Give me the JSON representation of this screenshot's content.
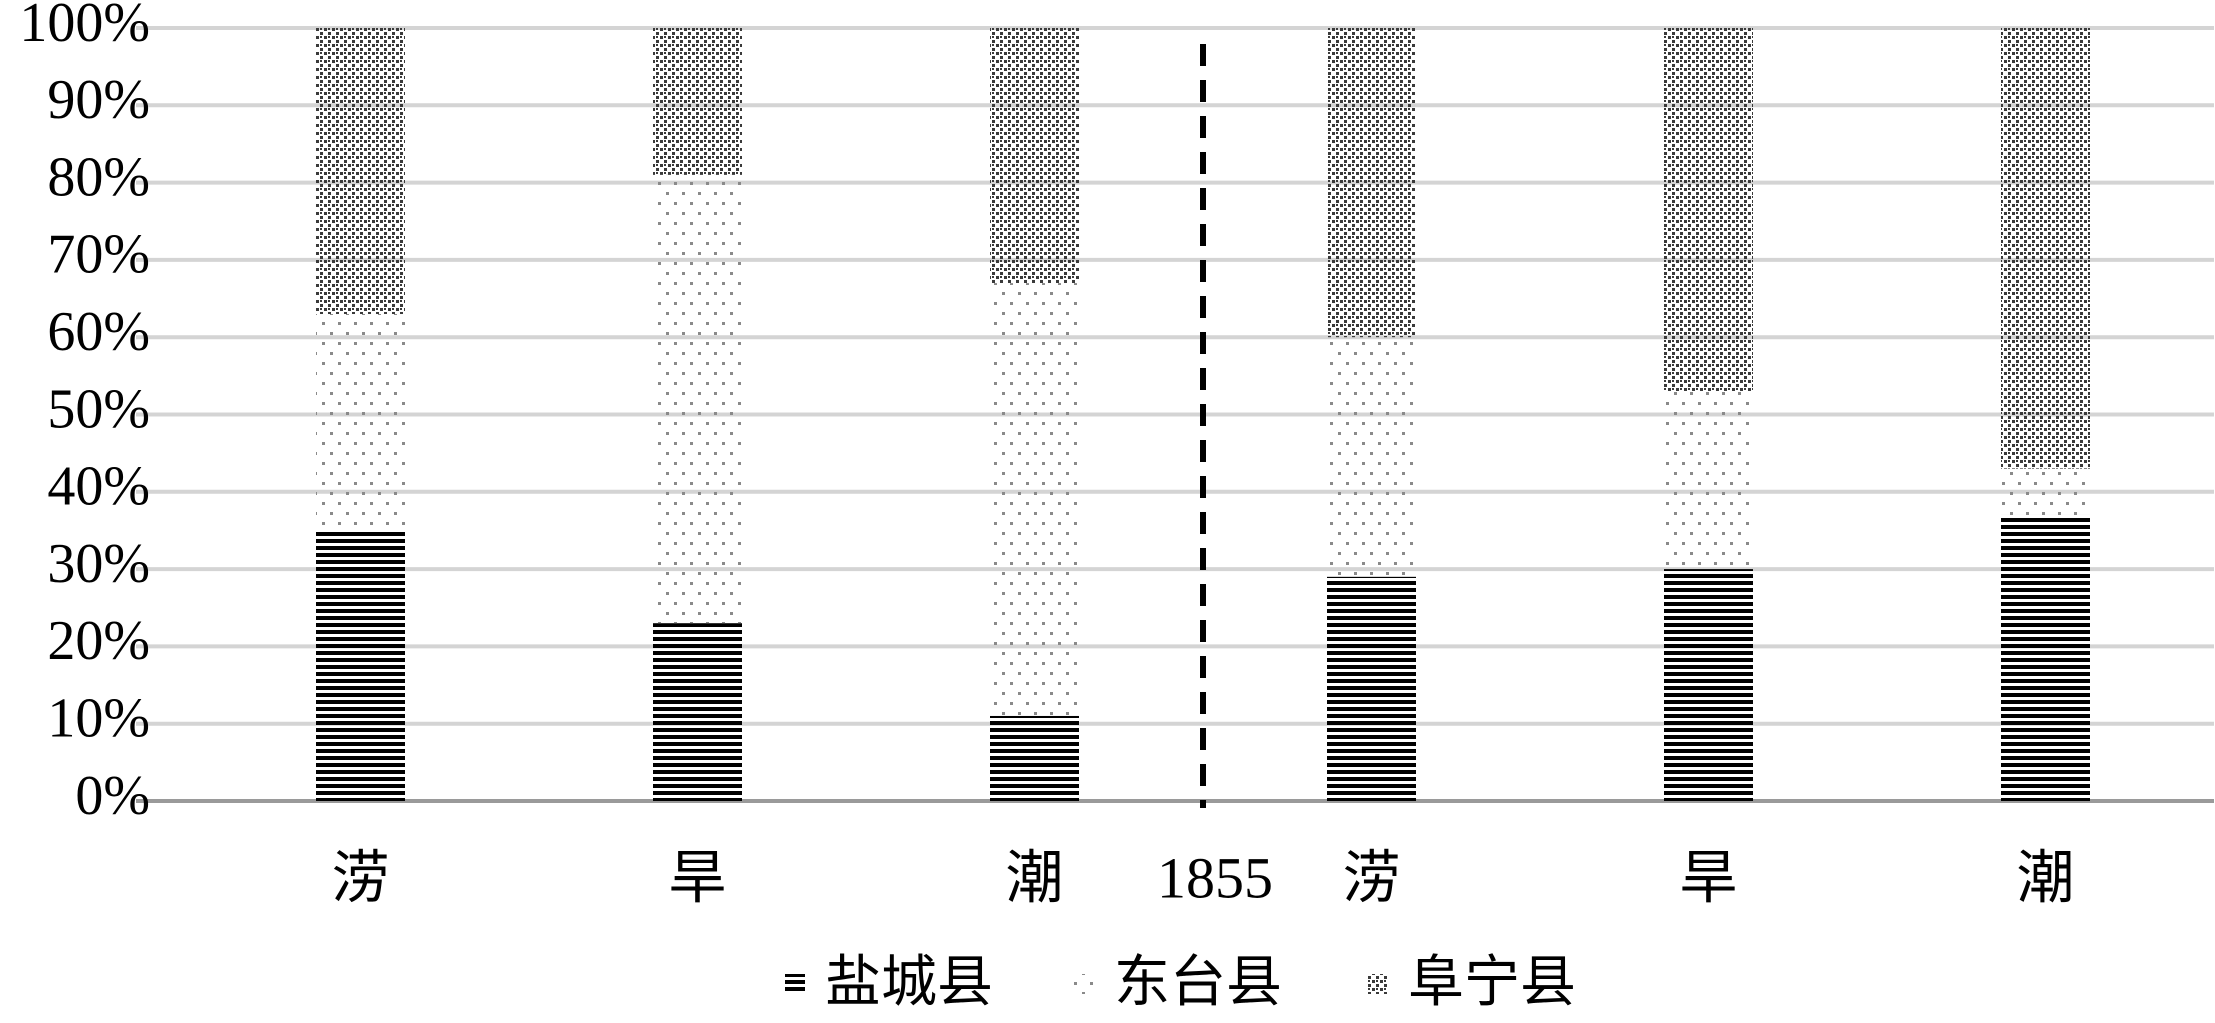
{
  "chart_data": {
    "type": "stacked_bar",
    "categories": [
      "涝",
      "旱",
      "潮",
      "涝",
      "旱",
      "潮"
    ],
    "annotation": "1855",
    "series": [
      {
        "name": "盐城县",
        "color": "#000000",
        "values": [
          35,
          23,
          11,
          29,
          30,
          37
        ]
      },
      {
        "name": "东台县",
        "color": "#8a8a8a",
        "values": [
          28,
          58,
          56,
          31,
          23,
          6
        ]
      },
      {
        "name": "阜宁县",
        "color": "#3a3a3a",
        "values": [
          37,
          19,
          33,
          40,
          47,
          57
        ]
      }
    ],
    "ylim": [
      0,
      100
    ],
    "yticks": [
      {
        "value": 0,
        "label": "0%"
      },
      {
        "value": 10,
        "label": "10%"
      },
      {
        "value": 20,
        "label": "20%"
      },
      {
        "value": 30,
        "label": "30%"
      },
      {
        "value": 40,
        "label": "40%"
      },
      {
        "value": 50,
        "label": "50%"
      },
      {
        "value": 60,
        "label": "60%"
      },
      {
        "value": 70,
        "label": "70%"
      },
      {
        "value": 80,
        "label": "80%"
      },
      {
        "value": 90,
        "label": "90%"
      },
      {
        "value": 100,
        "label": "100%"
      }
    ],
    "grid": true
  }
}
